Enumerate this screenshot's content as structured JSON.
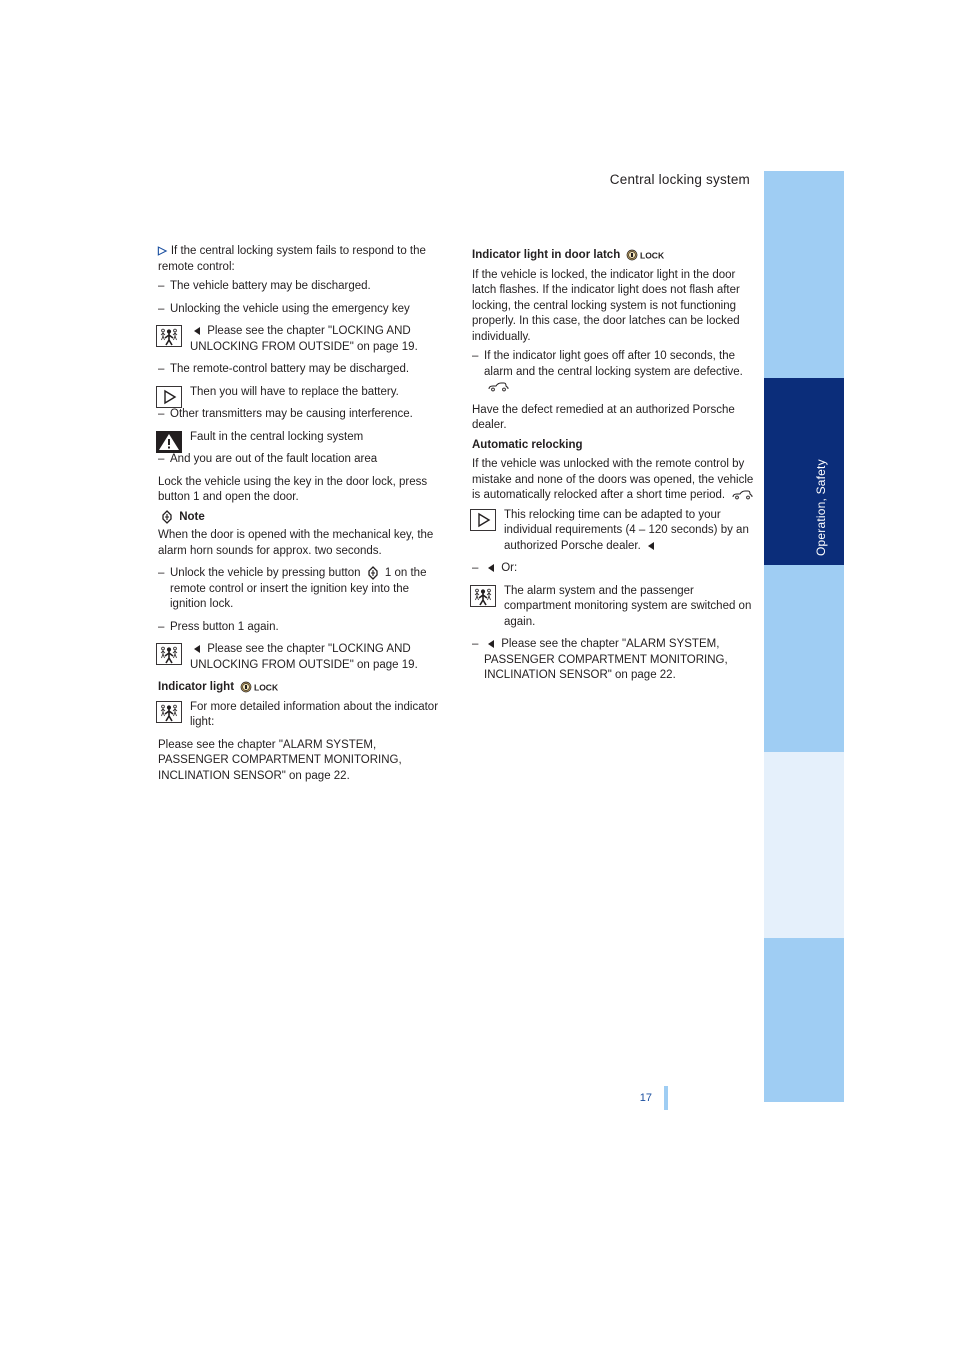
{
  "header": {
    "title": "Central locking system"
  },
  "sidebar": {
    "active_label": "Operation, Safety",
    "colors": {
      "light": "#9fcdf3",
      "dark": "#0b2d7a",
      "pale": "#e5f0fb"
    }
  },
  "col1": {
    "section_lead": "If the central locking system fails to respond to the remote control:",
    "items": [
      {
        "type": "dash",
        "text": "The vehicle battery may be discharged."
      },
      {
        "type": "dash",
        "text": "Unlocking the vehicle using the emergency key"
      },
      {
        "type": "info-person",
        "text": "Please see the chapter \"LOCKING AND UNLOCKING FROM OUTSIDE\" on page 19."
      },
      {
        "type": "dash",
        "text": "The remote-control battery may be discharged."
      },
      {
        "type": "info-play",
        "text": "Then you will have to replace the battery."
      },
      {
        "type": "dash",
        "text": "Other transmitters may be causing interference."
      },
      {
        "type": "info-warn",
        "text": "Fault in the central locking system"
      },
      {
        "type": "dash",
        "text": "And you are out of the fault location area"
      },
      {
        "type": "para",
        "text": "Lock the vehicle using the key in the door lock, press button 1 and open the door."
      },
      {
        "type": "note",
        "title": "Note",
        "lines": [
          "When the door is opened with the mechanical key, the alarm horn sounds for approx. two seconds."
        ]
      },
      {
        "type": "dash",
        "text": "Unlock the vehicle by pressing button 1 on the remote control or insert the ignition key into the ignition lock."
      },
      {
        "type": "dash",
        "text": "Press button 1 again."
      },
      {
        "type": "info-person",
        "text": "Please see the chapter \"LOCKING AND UNLOCKING FROM OUTSIDE\" on page 19."
      },
      {
        "type": "heading",
        "text": "Indicator light"
      },
      {
        "type": "info-person",
        "text": "For more detailed information about the indicator light:"
      },
      {
        "type": "para",
        "text": "Please see the chapter \"ALARM SYSTEM, PASSENGER COMPARTMENT MONITORING, INCLINATION SENSOR\" on page 22."
      }
    ]
  },
  "col2": {
    "items": [
      {
        "type": "heading",
        "text": "Indicator light in door latch"
      },
      {
        "type": "para",
        "text": "If the vehicle is locked, the indicator light in the door latch flashes. If the indicator light does not flash after locking, the central locking system is not functioning properly. In this case, the door latches can be locked individually."
      },
      {
        "type": "dash",
        "text": "If the indicator light goes off after 10 seconds, the alarm and the central locking system are defective."
      },
      {
        "type": "para",
        "text": "Have the defect remedied at an authorized Porsche dealer."
      },
      {
        "type": "heading",
        "text": "Automatic relocking"
      },
      {
        "type": "para",
        "text": "If the vehicle was unlocked with the remote control by mistake and none of the doors was opened, the vehicle is automatically relocked after a short time period."
      },
      {
        "type": "info-play",
        "text": "This relocking time can be adapted to your individual requirements (4 – 120 seconds) by an authorized Porsche dealer."
      },
      {
        "type": "dash",
        "text": "Or:"
      },
      {
        "type": "info-person",
        "text": "The alarm system and the passenger compartment monitoring system are switched on again."
      },
      {
        "type": "dash",
        "text": "Please see the chapter \"ALARM SYSTEM, PASSENGER COMPARTMENT MONITORING, INCLINATION SENSOR\" on page 22."
      }
    ]
  },
  "footer": {
    "page": "17"
  }
}
